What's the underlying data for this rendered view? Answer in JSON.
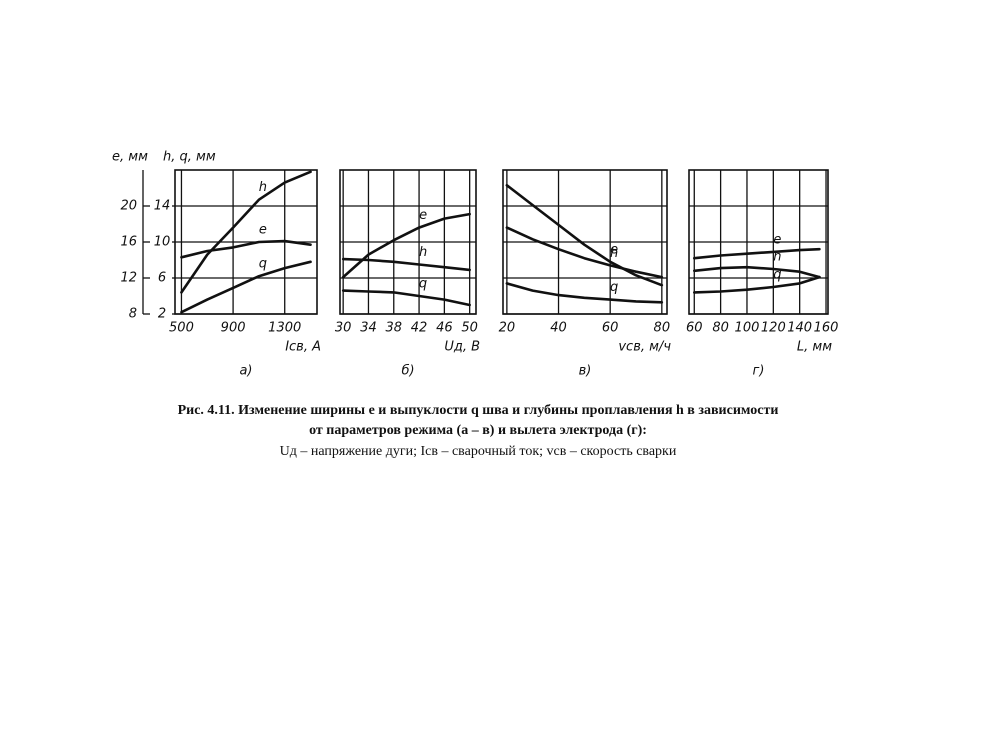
{
  "chart_data": [
    {
      "type": "line",
      "title": "а)",
      "xlabel": "Iсв, А",
      "ylabel": "h, q, мм",
      "y2label": "e, мм",
      "x": [
        500,
        700,
        900,
        1100,
        1300,
        1500
      ],
      "xlim": [
        450,
        1550
      ],
      "xticks": [
        500,
        900,
        1300
      ],
      "ylim": [
        2,
        18
      ],
      "yticks": [
        2,
        6,
        10,
        14
      ],
      "y2lim": [
        8,
        24
      ],
      "y2ticks": [
        8,
        12,
        16,
        20
      ],
      "grid": true,
      "series": [
        {
          "name": "h",
          "color": "#111111",
          "values": [
            4.4,
            8.6,
            11.6,
            14.7,
            16.6,
            17.8
          ]
        },
        {
          "name": "e",
          "color": "#111111",
          "axis": "y2",
          "values": [
            14.3,
            15.0,
            15.4,
            16.0,
            16.1,
            15.7
          ]
        },
        {
          "name": "q",
          "color": "#111111",
          "values": [
            2.2,
            3.6,
            4.9,
            6.2,
            7.1,
            7.8
          ]
        }
      ]
    },
    {
      "type": "line",
      "title": "б)",
      "xlabel": "Uд, В",
      "x": [
        30,
        34,
        38,
        42,
        46,
        50
      ],
      "xlim": [
        29.5,
        51
      ],
      "xticks": [
        30,
        34,
        38,
        42,
        46,
        50
      ],
      "ylim": [
        2,
        18
      ],
      "y2lim": [
        8,
        24
      ],
      "grid": true,
      "series": [
        {
          "name": "e",
          "color": "#111111",
          "axis": "y2",
          "values": [
            12.1,
            14.6,
            16.2,
            17.6,
            18.6,
            19.1
          ]
        },
        {
          "name": "h",
          "color": "#111111",
          "values": [
            8.1,
            8.0,
            7.8,
            7.5,
            7.2,
            6.9
          ]
        },
        {
          "name": "q",
          "color": "#111111",
          "values": [
            4.6,
            4.5,
            4.4,
            4.0,
            3.6,
            3.0
          ]
        }
      ]
    },
    {
      "type": "line",
      "title": "в)",
      "xlabel": "vсв, м/ч",
      "x": [
        20,
        30,
        40,
        50,
        60,
        70,
        80
      ],
      "xlim": [
        18.5,
        82
      ],
      "xticks": [
        20,
        40,
        60,
        80
      ],
      "ylim": [
        2,
        18
      ],
      "y2lim": [
        8,
        24
      ],
      "grid": true,
      "series": [
        {
          "name": "e",
          "color": "#111111",
          "axis": "y2",
          "values": [
            22.3,
            20.1,
            17.9,
            15.7,
            13.8,
            12.3,
            11.2
          ]
        },
        {
          "name": "h",
          "color": "#111111",
          "values": [
            11.6,
            10.3,
            9.2,
            8.2,
            7.4,
            6.7,
            6.1
          ]
        },
        {
          "name": "q",
          "color": "#111111",
          "values": [
            5.4,
            4.6,
            4.1,
            3.8,
            3.6,
            3.4,
            3.3
          ]
        }
      ]
    },
    {
      "type": "line",
      "title": "г)",
      "xlabel": "L, мм",
      "x": [
        60,
        80,
        100,
        120,
        140,
        155
      ],
      "xlim": [
        56,
        161.5
      ],
      "xticks": [
        60,
        80,
        100,
        120,
        140,
        160
      ],
      "ylim": [
        2,
        18
      ],
      "y2lim": [
        8,
        24
      ],
      "grid": true,
      "series": [
        {
          "name": "e",
          "color": "#111111",
          "axis": "y2",
          "values": [
            14.2,
            14.5,
            14.7,
            14.9,
            15.1,
            15.2
          ]
        },
        {
          "name": "h",
          "color": "#111111",
          "values": [
            6.8,
            7.1,
            7.2,
            7.0,
            6.7,
            6.1
          ]
        },
        {
          "name": "q",
          "color": "#111111",
          "values": [
            4.4,
            4.5,
            4.7,
            5.0,
            5.4,
            6.1
          ]
        }
      ]
    }
  ],
  "caption": [
    "Рис. 4.11. Изменение ширины e и выпуклости q шва и глубины проплавления h в зависимости",
    "от параметров режима (а – в) и вылета электрода (г):",
    "Uд – напряжение дуги; Iсв – сварочный ток; vсв – скорость сварки"
  ]
}
